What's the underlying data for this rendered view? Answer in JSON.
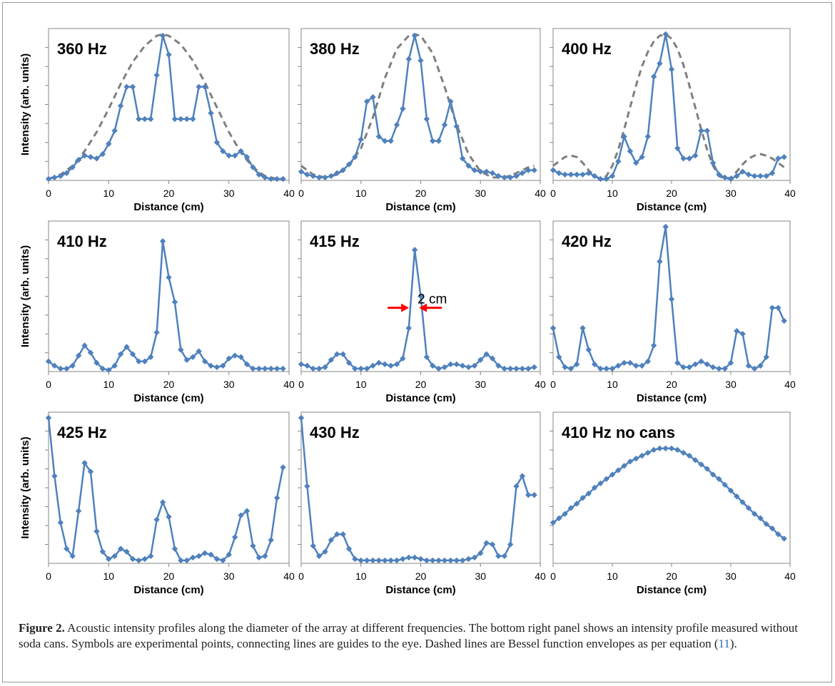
{
  "figure": {
    "caption_label": "Figure 2.",
    "caption_text_1": " Acoustic intensity profiles along the diameter of the array at different frequencies. The bottom right panel shows an intensity profile measured without soda cans. Symbols are experimental points, connecting lines are guides to the eye. Dashed lines are Bessel function envelopes as per equation (",
    "caption_ref": "11",
    "caption_text_2": ")."
  },
  "colors": {
    "data": "#4f81bd",
    "envelope": "#7f7f7f",
    "arrow": "#ff0000",
    "axis": "#878787"
  },
  "chart_data": [
    {
      "type": "line",
      "title": "360 Hz",
      "xlabel": "Distance (cm)",
      "ylabel": "Intensity (arb. units)",
      "xlim": [
        0,
        40
      ],
      "xticks": [
        0,
        10,
        20,
        30,
        40
      ],
      "ylim": [
        0,
        1
      ],
      "y_tick_labels": false,
      "series": [
        {
          "x": [
            0,
            1,
            2,
            3,
            4,
            5,
            6,
            7,
            8,
            9,
            10,
            11,
            12,
            13,
            14,
            15,
            16,
            17,
            18,
            19,
            20,
            21,
            22,
            23,
            24,
            25,
            26,
            27,
            28,
            29,
            30,
            31,
            32,
            33,
            34,
            35,
            36,
            37,
            38,
            39
          ],
          "y": [
            0.01,
            0.02,
            0.03,
            0.05,
            0.09,
            0.14,
            0.17,
            0.16,
            0.15,
            0.18,
            0.25,
            0.34,
            0.51,
            0.64,
            0.64,
            0.42,
            0.42,
            0.42,
            0.72,
            0.99,
            0.86,
            0.42,
            0.42,
            0.42,
            0.42,
            0.64,
            0.64,
            0.46,
            0.26,
            0.2,
            0.17,
            0.17,
            0.2,
            0.16,
            0.09,
            0.04,
            0.02,
            0.01,
            0.01,
            0.01
          ]
        }
      ],
      "envelope": {
        "x": [
          0,
          2,
          4,
          6,
          8,
          10,
          12,
          14,
          16,
          18,
          19,
          20,
          22,
          24,
          26,
          28,
          30,
          32,
          34,
          36,
          38,
          39
        ],
        "y": [
          0.01,
          0.04,
          0.1,
          0.2,
          0.33,
          0.49,
          0.66,
          0.81,
          0.92,
          0.99,
          1.0,
          0.99,
          0.93,
          0.82,
          0.67,
          0.5,
          0.33,
          0.19,
          0.09,
          0.03,
          0.01,
          0.01
        ]
      }
    },
    {
      "type": "line",
      "title": "380 Hz",
      "xlabel": "Distance (cm)",
      "ylabel": "",
      "xlim": [
        0,
        40
      ],
      "xticks": [
        0,
        10,
        20,
        30,
        40
      ],
      "ylim": [
        0,
        1
      ],
      "y_tick_labels": false,
      "series": [
        {
          "x": [
            0,
            1,
            2,
            3,
            4,
            5,
            6,
            7,
            8,
            9,
            10,
            11,
            12,
            13,
            14,
            15,
            16,
            17,
            18,
            19,
            20,
            21,
            22,
            23,
            24,
            25,
            26,
            27,
            28,
            29,
            30,
            31,
            32,
            33,
            34,
            35,
            36,
            37,
            38,
            39
          ],
          "y": [
            0.06,
            0.04,
            0.03,
            0.02,
            0.02,
            0.03,
            0.05,
            0.07,
            0.11,
            0.16,
            0.28,
            0.54,
            0.57,
            0.3,
            0.27,
            0.27,
            0.38,
            0.49,
            0.83,
            0.99,
            0.82,
            0.42,
            0.27,
            0.27,
            0.38,
            0.54,
            0.37,
            0.15,
            0.1,
            0.07,
            0.06,
            0.06,
            0.05,
            0.03,
            0.02,
            0.02,
            0.03,
            0.05,
            0.07,
            0.07
          ]
        }
      ],
      "envelope": {
        "x": [
          0,
          2,
          4,
          6,
          8,
          10,
          12,
          14,
          16,
          18,
          19,
          20,
          22,
          24,
          26,
          28,
          30,
          32,
          34,
          36,
          38,
          39
        ],
        "y": [
          0.1,
          0.04,
          0.02,
          0.04,
          0.1,
          0.22,
          0.43,
          0.7,
          0.9,
          0.99,
          1.0,
          0.99,
          0.87,
          0.64,
          0.38,
          0.18,
          0.06,
          0.02,
          0.02,
          0.05,
          0.09,
          0.1
        ]
      }
    },
    {
      "type": "line",
      "title": "400 Hz",
      "xlabel": "Distance (cm)",
      "ylabel": "",
      "xlim": [
        0,
        40
      ],
      "xticks": [
        0,
        10,
        20,
        30,
        40
      ],
      "ylim": [
        0,
        1
      ],
      "y_tick_labels": false,
      "series": [
        {
          "x": [
            0,
            1,
            2,
            3,
            4,
            5,
            6,
            7,
            8,
            9,
            10,
            11,
            12,
            13,
            14,
            15,
            16,
            17,
            18,
            19,
            20,
            21,
            22,
            23,
            24,
            25,
            26,
            27,
            28,
            29,
            30,
            31,
            32,
            33,
            34,
            35,
            36,
            37,
            38,
            39
          ],
          "y": [
            0.07,
            0.05,
            0.04,
            0.04,
            0.04,
            0.04,
            0.05,
            0.03,
            0.01,
            0.01,
            0.03,
            0.13,
            0.3,
            0.2,
            0.12,
            0.16,
            0.3,
            0.71,
            0.8,
            1.0,
            0.76,
            0.22,
            0.15,
            0.15,
            0.17,
            0.34,
            0.34,
            0.12,
            0.04,
            0.02,
            0.01,
            0.03,
            0.06,
            0.04,
            0.03,
            0.03,
            0.03,
            0.05,
            0.15,
            0.16
          ]
        }
      ],
      "envelope": {
        "x": [
          0,
          1,
          2,
          3,
          4,
          5,
          6,
          7,
          8,
          9,
          10,
          11,
          12,
          13,
          14,
          15,
          16,
          17,
          18,
          19,
          20,
          21,
          22,
          23,
          24,
          25,
          26,
          27,
          28,
          29,
          30,
          31,
          32,
          33,
          34,
          35,
          36,
          37,
          38,
          39
        ],
        "y": [
          0.1,
          0.13,
          0.16,
          0.17,
          0.16,
          0.12,
          0.07,
          0.03,
          0.01,
          0.03,
          0.1,
          0.21,
          0.35,
          0.5,
          0.65,
          0.78,
          0.88,
          0.95,
          0.99,
          1.0,
          0.97,
          0.9,
          0.79,
          0.65,
          0.5,
          0.35,
          0.21,
          0.1,
          0.03,
          0.01,
          0.02,
          0.06,
          0.11,
          0.15,
          0.17,
          0.18,
          0.17,
          0.15,
          0.12,
          0.09
        ]
      }
    },
    {
      "type": "line",
      "title": "410 Hz",
      "xlabel": "Distance (cm)",
      "ylabel": "Intensity (arb. units)",
      "xlim": [
        0,
        40
      ],
      "xticks": [
        0,
        10,
        20,
        30,
        40
      ],
      "ylim": [
        0,
        1
      ],
      "y_tick_labels": false,
      "series": [
        {
          "x": [
            0,
            1,
            2,
            3,
            4,
            5,
            6,
            7,
            8,
            9,
            10,
            11,
            12,
            13,
            14,
            15,
            16,
            17,
            18,
            19,
            20,
            21,
            22,
            23,
            24,
            25,
            26,
            27,
            28,
            29,
            30,
            31,
            32,
            33,
            34,
            35,
            36,
            37,
            38,
            39
          ],
          "y": [
            0.07,
            0.04,
            0.02,
            0.02,
            0.04,
            0.11,
            0.18,
            0.13,
            0.06,
            0.02,
            0.01,
            0.04,
            0.12,
            0.17,
            0.12,
            0.07,
            0.07,
            0.1,
            0.27,
            0.9,
            0.65,
            0.48,
            0.15,
            0.08,
            0.1,
            0.14,
            0.07,
            0.04,
            0.03,
            0.04,
            0.09,
            0.11,
            0.1,
            0.05,
            0.02,
            0.02,
            0.02,
            0.02,
            0.02,
            0.02
          ]
        }
      ]
    },
    {
      "type": "line",
      "title": "415 Hz",
      "xlabel": "Distance (cm)",
      "ylabel": "",
      "xlim": [
        0,
        40
      ],
      "xticks": [
        0,
        10,
        20,
        30,
        40
      ],
      "ylim": [
        0,
        1
      ],
      "y_tick_labels": false,
      "annotation": {
        "text": "2 cm",
        "x": 19,
        "y": 0.44
      },
      "series": [
        {
          "x": [
            0,
            1,
            2,
            3,
            4,
            5,
            6,
            7,
            8,
            9,
            10,
            11,
            12,
            13,
            14,
            15,
            16,
            17,
            18,
            19,
            20,
            21,
            22,
            23,
            24,
            25,
            26,
            27,
            28,
            29,
            30,
            31,
            32,
            33,
            34,
            35,
            36,
            37,
            38,
            39
          ],
          "y": [
            0.05,
            0.04,
            0.02,
            0.02,
            0.03,
            0.08,
            0.12,
            0.12,
            0.06,
            0.02,
            0.02,
            0.02,
            0.04,
            0.06,
            0.05,
            0.04,
            0.05,
            0.09,
            0.3,
            0.84,
            0.52,
            0.1,
            0.04,
            0.02,
            0.03,
            0.05,
            0.05,
            0.04,
            0.03,
            0.04,
            0.08,
            0.12,
            0.09,
            0.04,
            0.02,
            0.02,
            0.02,
            0.02,
            0.02,
            0.03
          ]
        }
      ]
    },
    {
      "type": "line",
      "title": "420 Hz",
      "xlabel": "Distance (cm)",
      "ylabel": "",
      "xlim": [
        0,
        40
      ],
      "xticks": [
        0,
        10,
        20,
        30,
        40
      ],
      "ylim": [
        0,
        1
      ],
      "y_tick_labels": false,
      "series": [
        {
          "x": [
            0,
            1,
            2,
            3,
            4,
            5,
            6,
            7,
            8,
            9,
            10,
            11,
            12,
            13,
            14,
            15,
            16,
            17,
            18,
            19,
            20,
            21,
            22,
            23,
            24,
            25,
            26,
            27,
            28,
            29,
            30,
            31,
            32,
            33,
            34,
            35,
            36,
            37,
            38,
            39
          ],
          "y": [
            0.3,
            0.1,
            0.03,
            0.02,
            0.05,
            0.3,
            0.15,
            0.05,
            0.02,
            0.02,
            0.02,
            0.04,
            0.06,
            0.06,
            0.04,
            0.04,
            0.07,
            0.18,
            0.76,
            1.0,
            0.5,
            0.06,
            0.03,
            0.03,
            0.05,
            0.07,
            0.05,
            0.03,
            0.02,
            0.02,
            0.06,
            0.28,
            0.26,
            0.04,
            0.02,
            0.04,
            0.1,
            0.44,
            0.44,
            0.35
          ]
        }
      ]
    },
    {
      "type": "line",
      "title": "425 Hz",
      "xlabel": "Distance (cm)",
      "ylabel": "Intensity (arb. units)",
      "xlim": [
        0,
        40
      ],
      "xticks": [
        0,
        10,
        20,
        30,
        40
      ],
      "ylim": [
        0,
        1
      ],
      "y_tick_labels": false,
      "series": [
        {
          "x": [
            0,
            1,
            2,
            3,
            4,
            5,
            6,
            7,
            8,
            9,
            10,
            11,
            12,
            13,
            14,
            15,
            16,
            17,
            18,
            19,
            20,
            21,
            22,
            23,
            24,
            25,
            26,
            27,
            28,
            29,
            30,
            31,
            32,
            33,
            34,
            35,
            36,
            37,
            38,
            39
          ],
          "y": [
            1.0,
            0.6,
            0.28,
            0.1,
            0.05,
            0.36,
            0.69,
            0.63,
            0.22,
            0.08,
            0.03,
            0.05,
            0.1,
            0.08,
            0.03,
            0.02,
            0.03,
            0.05,
            0.3,
            0.42,
            0.32,
            0.1,
            0.02,
            0.02,
            0.04,
            0.05,
            0.07,
            0.06,
            0.03,
            0.02,
            0.06,
            0.18,
            0.33,
            0.36,
            0.12,
            0.04,
            0.05,
            0.16,
            0.45,
            0.66
          ]
        }
      ]
    },
    {
      "type": "line",
      "title": "430 Hz",
      "xlabel": "Distance (cm)",
      "ylabel": "",
      "xlim": [
        0,
        40
      ],
      "xticks": [
        0,
        10,
        20,
        30,
        40
      ],
      "ylim": [
        0,
        1
      ],
      "y_tick_labels": false,
      "series": [
        {
          "x": [
            0,
            1,
            2,
            3,
            4,
            5,
            6,
            7,
            8,
            9,
            10,
            11,
            12,
            13,
            14,
            15,
            16,
            17,
            18,
            19,
            20,
            21,
            22,
            23,
            24,
            25,
            26,
            27,
            28,
            29,
            30,
            31,
            32,
            33,
            34,
            35,
            36,
            37,
            38,
            39
          ],
          "y": [
            1.0,
            0.53,
            0.12,
            0.05,
            0.08,
            0.16,
            0.2,
            0.2,
            0.1,
            0.03,
            0.02,
            0.02,
            0.02,
            0.02,
            0.02,
            0.02,
            0.02,
            0.03,
            0.04,
            0.04,
            0.03,
            0.02,
            0.02,
            0.02,
            0.02,
            0.02,
            0.02,
            0.02,
            0.03,
            0.04,
            0.07,
            0.14,
            0.13,
            0.05,
            0.05,
            0.13,
            0.53,
            0.6,
            0.47,
            0.47
          ]
        }
      ]
    },
    {
      "type": "line",
      "title": "410 Hz no cans",
      "xlabel": "Distance (cm)",
      "ylabel": "",
      "xlim": [
        0,
        40
      ],
      "xticks": [
        0,
        10,
        20,
        30,
        40
      ],
      "ylim": [
        0,
        1
      ],
      "y_tick_labels": false,
      "series": [
        {
          "x": [
            0,
            1,
            2,
            3,
            4,
            5,
            6,
            7,
            8,
            9,
            10,
            11,
            12,
            13,
            14,
            15,
            16,
            17,
            18,
            19,
            20,
            21,
            22,
            23,
            24,
            25,
            26,
            27,
            28,
            29,
            30,
            31,
            32,
            33,
            34,
            35,
            36,
            37,
            38,
            39
          ],
          "y": [
            0.28,
            0.31,
            0.34,
            0.38,
            0.41,
            0.45,
            0.48,
            0.52,
            0.55,
            0.58,
            0.61,
            0.64,
            0.67,
            0.7,
            0.72,
            0.74,
            0.76,
            0.78,
            0.79,
            0.79,
            0.79,
            0.78,
            0.76,
            0.74,
            0.71,
            0.68,
            0.65,
            0.61,
            0.58,
            0.54,
            0.5,
            0.46,
            0.42,
            0.38,
            0.34,
            0.31,
            0.27,
            0.24,
            0.2,
            0.17
          ]
        }
      ]
    }
  ]
}
